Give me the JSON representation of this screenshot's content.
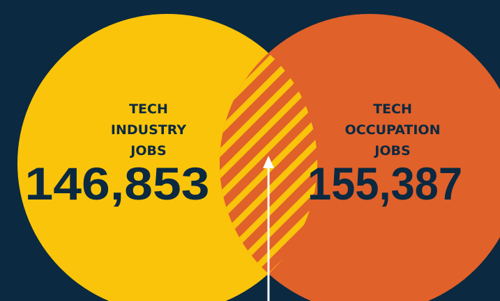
{
  "sets": [
    {
      "label": [
        "TECH",
        "INDUSTRY",
        "JOBS"
      ],
      "value": "146,853"
    },
    {
      "label": [
        "TECH",
        "OCCUPATION",
        "JOBS"
      ],
      "value": "155,387"
    }
  ]
}
